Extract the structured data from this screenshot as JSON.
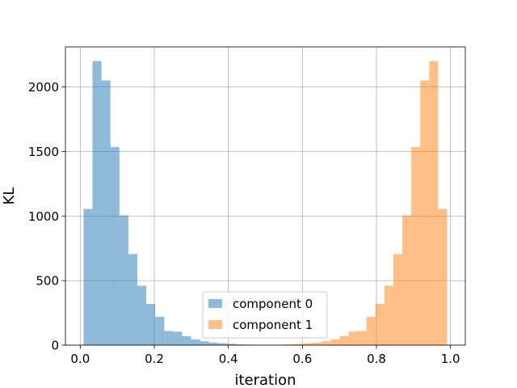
{
  "chart_data": {
    "type": "bar",
    "title": "",
    "xlabel": "iteration",
    "ylabel": "KL",
    "xlim": [
      -0.04,
      1.04
    ],
    "ylim": [
      0,
      2310
    ],
    "xticks": [
      0.0,
      0.2,
      0.4,
      0.6,
      0.8,
      1.0
    ],
    "xtick_labels": [
      "0.0",
      "0.2",
      "0.4",
      "0.6",
      "0.8",
      "1.0"
    ],
    "yticks": [
      0,
      500,
      1000,
      1500,
      2000
    ],
    "ytick_labels": [
      "0",
      "500",
      "1000",
      "1500",
      "2000"
    ],
    "grid": true,
    "legend_position": "bottom-center",
    "series": [
      {
        "name": "component 0",
        "color": "#1f77b4",
        "alpha": 0.5,
        "bin_edges": [
          0.009,
          0.0332,
          0.0574,
          0.0816,
          0.1058,
          0.13,
          0.1542,
          0.1784,
          0.2026,
          0.2268,
          0.251,
          0.2752,
          0.2994,
          0.3236,
          0.3478,
          0.372,
          0.3962,
          0.4204,
          0.4446,
          0.4688,
          0.493,
          0.5172,
          0.5414,
          0.5656,
          0.5898,
          0.614
        ],
        "counts": [
          1055,
          2200,
          2050,
          1535,
          1005,
          705,
          460,
          320,
          220,
          110,
          105,
          70,
          45,
          30,
          20,
          15,
          10,
          6,
          4,
          3,
          2,
          1,
          1,
          1,
          1
        ]
      },
      {
        "name": "component 1",
        "color": "#ff7f0e",
        "alpha": 0.5,
        "bin_edges": [
          0.386,
          0.4102,
          0.4344,
          0.4586,
          0.4828,
          0.507,
          0.5312,
          0.5554,
          0.5796,
          0.6038,
          0.628,
          0.6522,
          0.6764,
          0.7006,
          0.7248,
          0.749,
          0.7732,
          0.7974,
          0.8216,
          0.8458,
          0.87,
          0.8942,
          0.9184,
          0.9426,
          0.9668,
          0.991
        ],
        "counts": [
          1,
          1,
          1,
          1,
          2,
          3,
          4,
          6,
          10,
          15,
          20,
          30,
          45,
          70,
          105,
          110,
          220,
          320,
          460,
          705,
          1005,
          1535,
          2050,
          2200,
          1055
        ]
      }
    ]
  }
}
